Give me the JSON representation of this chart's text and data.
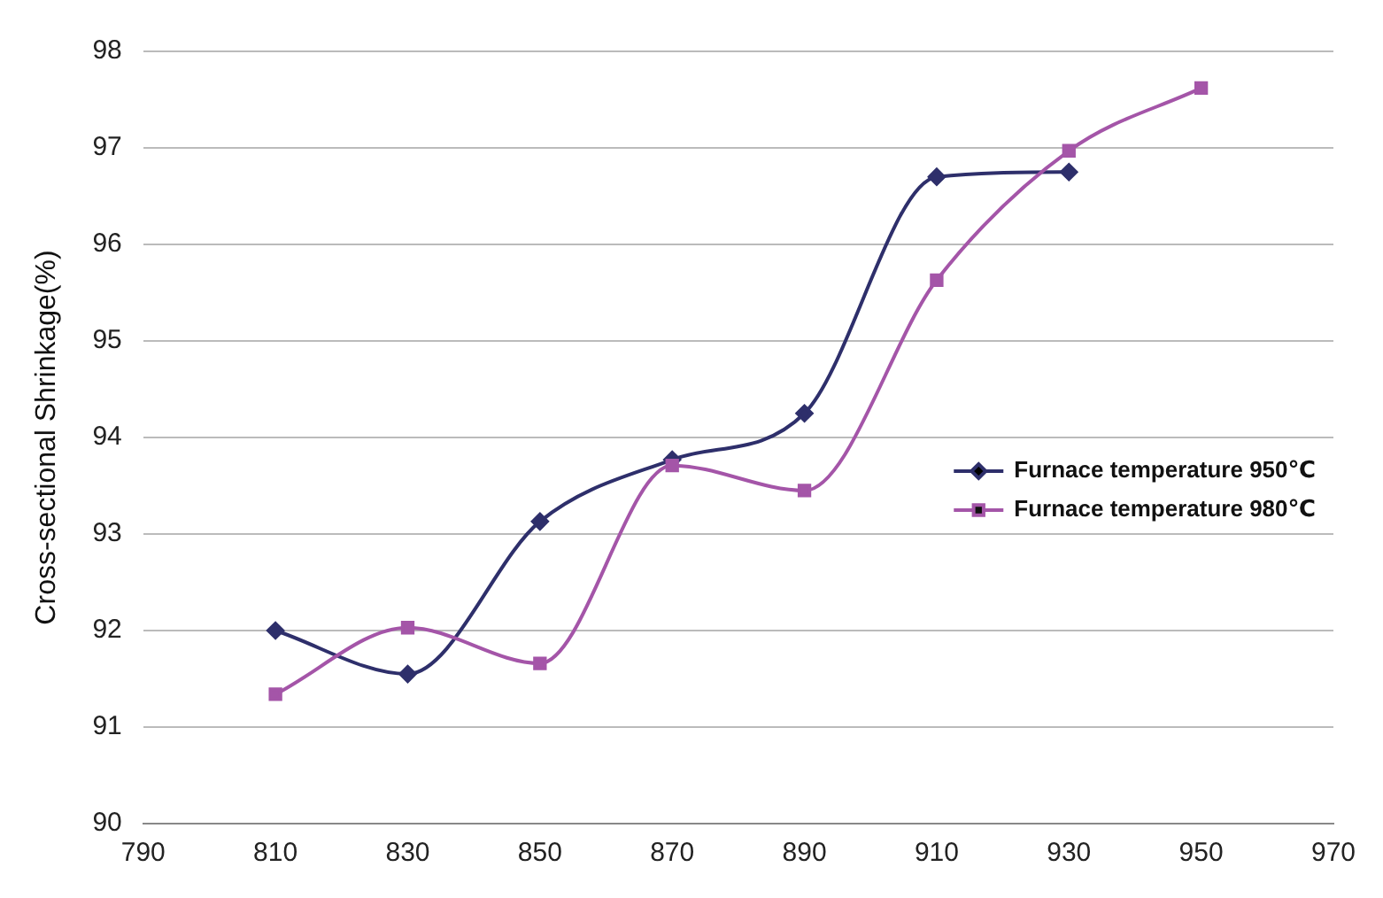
{
  "chart_data": {
    "type": "line",
    "ylabel": "Cross-sectional Shrinkage(%)",
    "x": [
      810,
      830,
      850,
      870,
      890,
      910,
      930,
      950
    ],
    "xlim": [
      790,
      970
    ],
    "xticks": [
      790,
      810,
      830,
      850,
      870,
      890,
      910,
      930,
      950,
      970
    ],
    "ylim": [
      90,
      98
    ],
    "yticks": [
      90,
      91,
      92,
      93,
      94,
      95,
      96,
      97,
      98
    ],
    "grid": "y",
    "legend": "right",
    "line_style": "solid",
    "series": [
      {
        "name": "Furnace temperature 950℃",
        "color": "#2e2f6b",
        "marker": "diamond",
        "values": [
          92.0,
          91.55,
          93.13,
          93.77,
          94.25,
          96.7,
          96.75,
          null
        ]
      },
      {
        "name": "Furnace temperature 980℃",
        "color": "#a455a8",
        "marker": "square",
        "values": [
          91.34,
          92.03,
          91.66,
          93.71,
          93.45,
          95.63,
          96.97,
          97.62
        ]
      }
    ]
  }
}
